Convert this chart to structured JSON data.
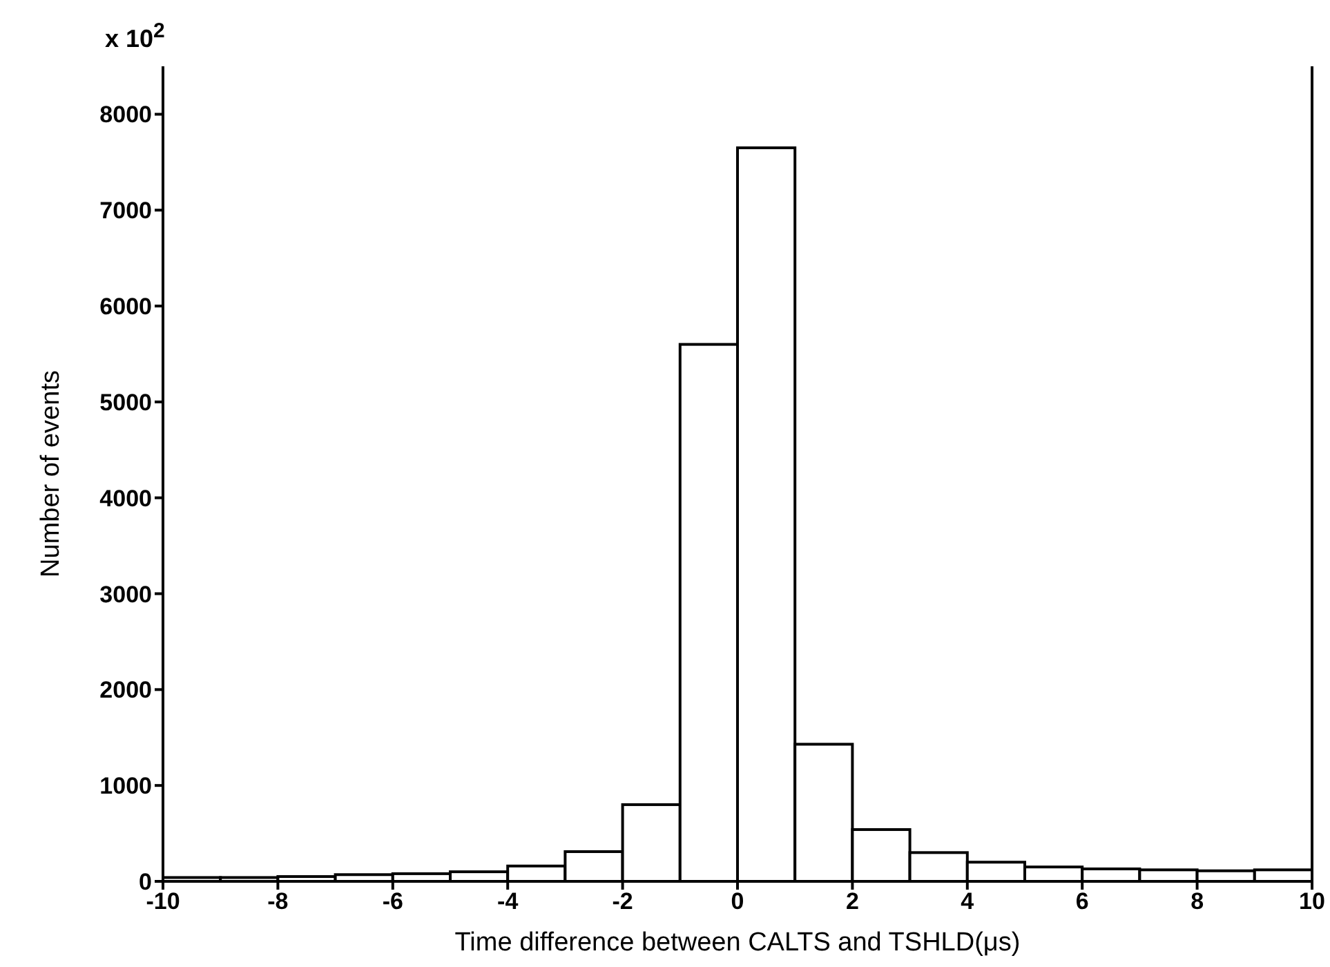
{
  "chart_data": {
    "type": "histogram",
    "xlabel": "Time difference between CALTS and TSHLD(μs)",
    "ylabel": "Number of events",
    "annotations": [
      "x 10$^{2}$"
    ],
    "bins": [
      -10,
      -9,
      -8,
      -7,
      -6,
      -5,
      -4,
      -3,
      -2,
      -1,
      0,
      1,
      2,
      3,
      4,
      5,
      6,
      7,
      8,
      9,
      10
    ],
    "values": [
      40,
      40,
      50,
      70,
      80,
      100,
      160,
      310,
      800,
      5600,
      7650,
      1430,
      540,
      300,
      200,
      150,
      130,
      120,
      110,
      120
    ],
    "color": "#000000",
    "xlim": [
      -10,
      10
    ],
    "xticks": [
      -10,
      -8,
      -6,
      -4,
      -2,
      0,
      2,
      4,
      6,
      8,
      10
    ],
    "ylim": [
      0,
      8500
    ],
    "yticks": [
      0,
      1000,
      2000,
      3000,
      4000,
      5000,
      6000,
      7000,
      8000
    ]
  }
}
